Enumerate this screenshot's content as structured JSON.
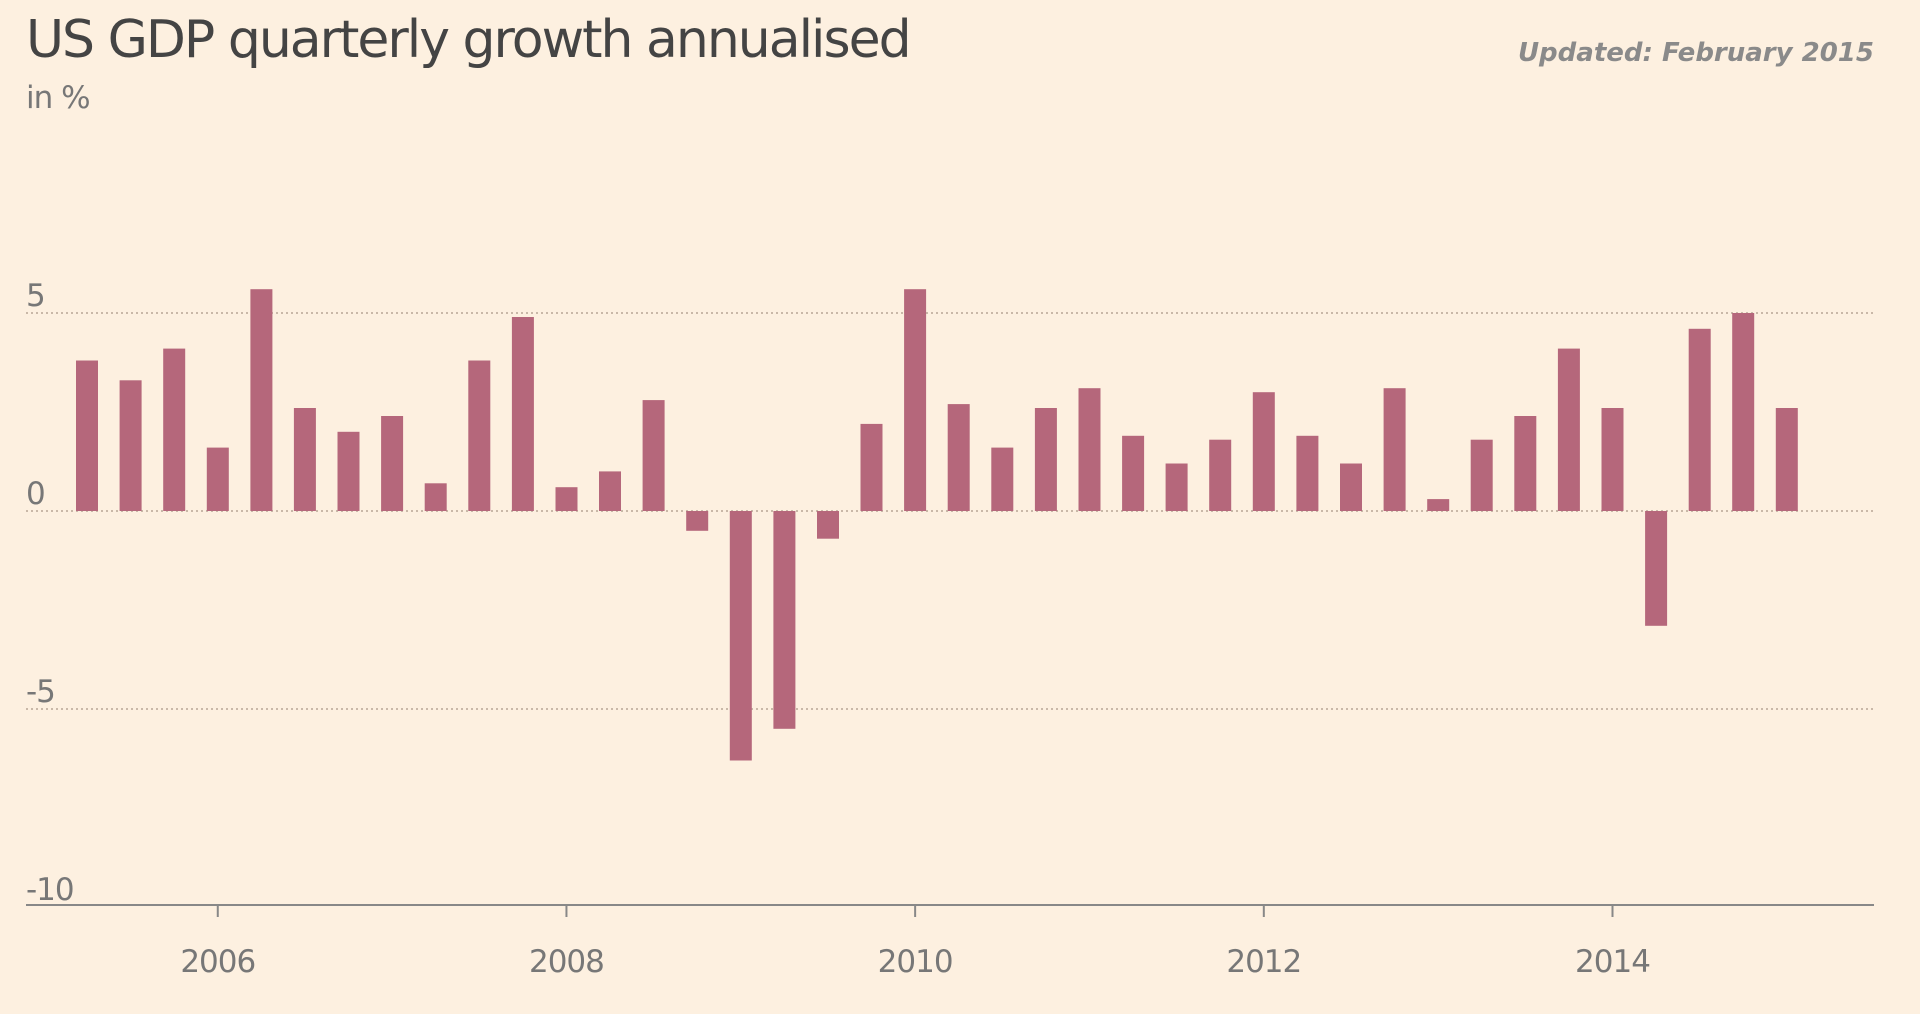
{
  "header": {
    "title": "US GDP quarterly growth annualised",
    "subtitle": "in %",
    "updated": "Updated: February 2015"
  },
  "colors": {
    "background": "#fdf0e0",
    "bar": "#b5677b",
    "gridline": "#c9b8a8",
    "axis": "#888888"
  },
  "chart_data": {
    "type": "bar",
    "title": "US GDP quarterly growth annualised",
    "subtitle": "in %",
    "xlabel": "",
    "ylabel": "",
    "ylim": [
      -10,
      10
    ],
    "yticks": [
      5,
      0,
      -5,
      -10
    ],
    "ytick_labels": [
      "5",
      "0",
      "-5",
      "-10"
    ],
    "xticks": [
      2006,
      2008,
      2010,
      2012,
      2014
    ],
    "xtick_labels": [
      "2006",
      "2008",
      "2010",
      "2012",
      "2014"
    ],
    "xlim": [
      2004.9,
      2015.5
    ],
    "grid": true,
    "legend": "none",
    "x": [
      2005.25,
      2005.5,
      2005.75,
      2006.0,
      2006.25,
      2006.5,
      2006.75,
      2007.0,
      2007.25,
      2007.5,
      2007.75,
      2008.0,
      2008.25,
      2008.5,
      2008.75,
      2009.0,
      2009.25,
      2009.5,
      2009.75,
      2010.0,
      2010.25,
      2010.5,
      2010.75,
      2011.0,
      2011.25,
      2011.5,
      2011.75,
      2012.0,
      2012.25,
      2012.5,
      2012.75,
      2013.0,
      2013.25,
      2013.5,
      2013.75,
      2014.0,
      2014.25,
      2014.5,
      2014.75,
      2015.0
    ],
    "values": [
      3.8,
      3.3,
      4.1,
      1.6,
      5.6,
      2.6,
      2.0,
      2.4,
      0.7,
      3.8,
      4.9,
      0.6,
      1.0,
      2.8,
      -0.5,
      -6.3,
      -5.5,
      -0.7,
      2.2,
      5.6,
      2.7,
      1.6,
      2.6,
      3.1,
      1.9,
      1.2,
      1.8,
      3.0,
      1.9,
      1.2,
      3.1,
      0.3,
      1.8,
      2.4,
      4.1,
      2.6,
      -2.9,
      4.6,
      5.0,
      2.6
    ]
  }
}
